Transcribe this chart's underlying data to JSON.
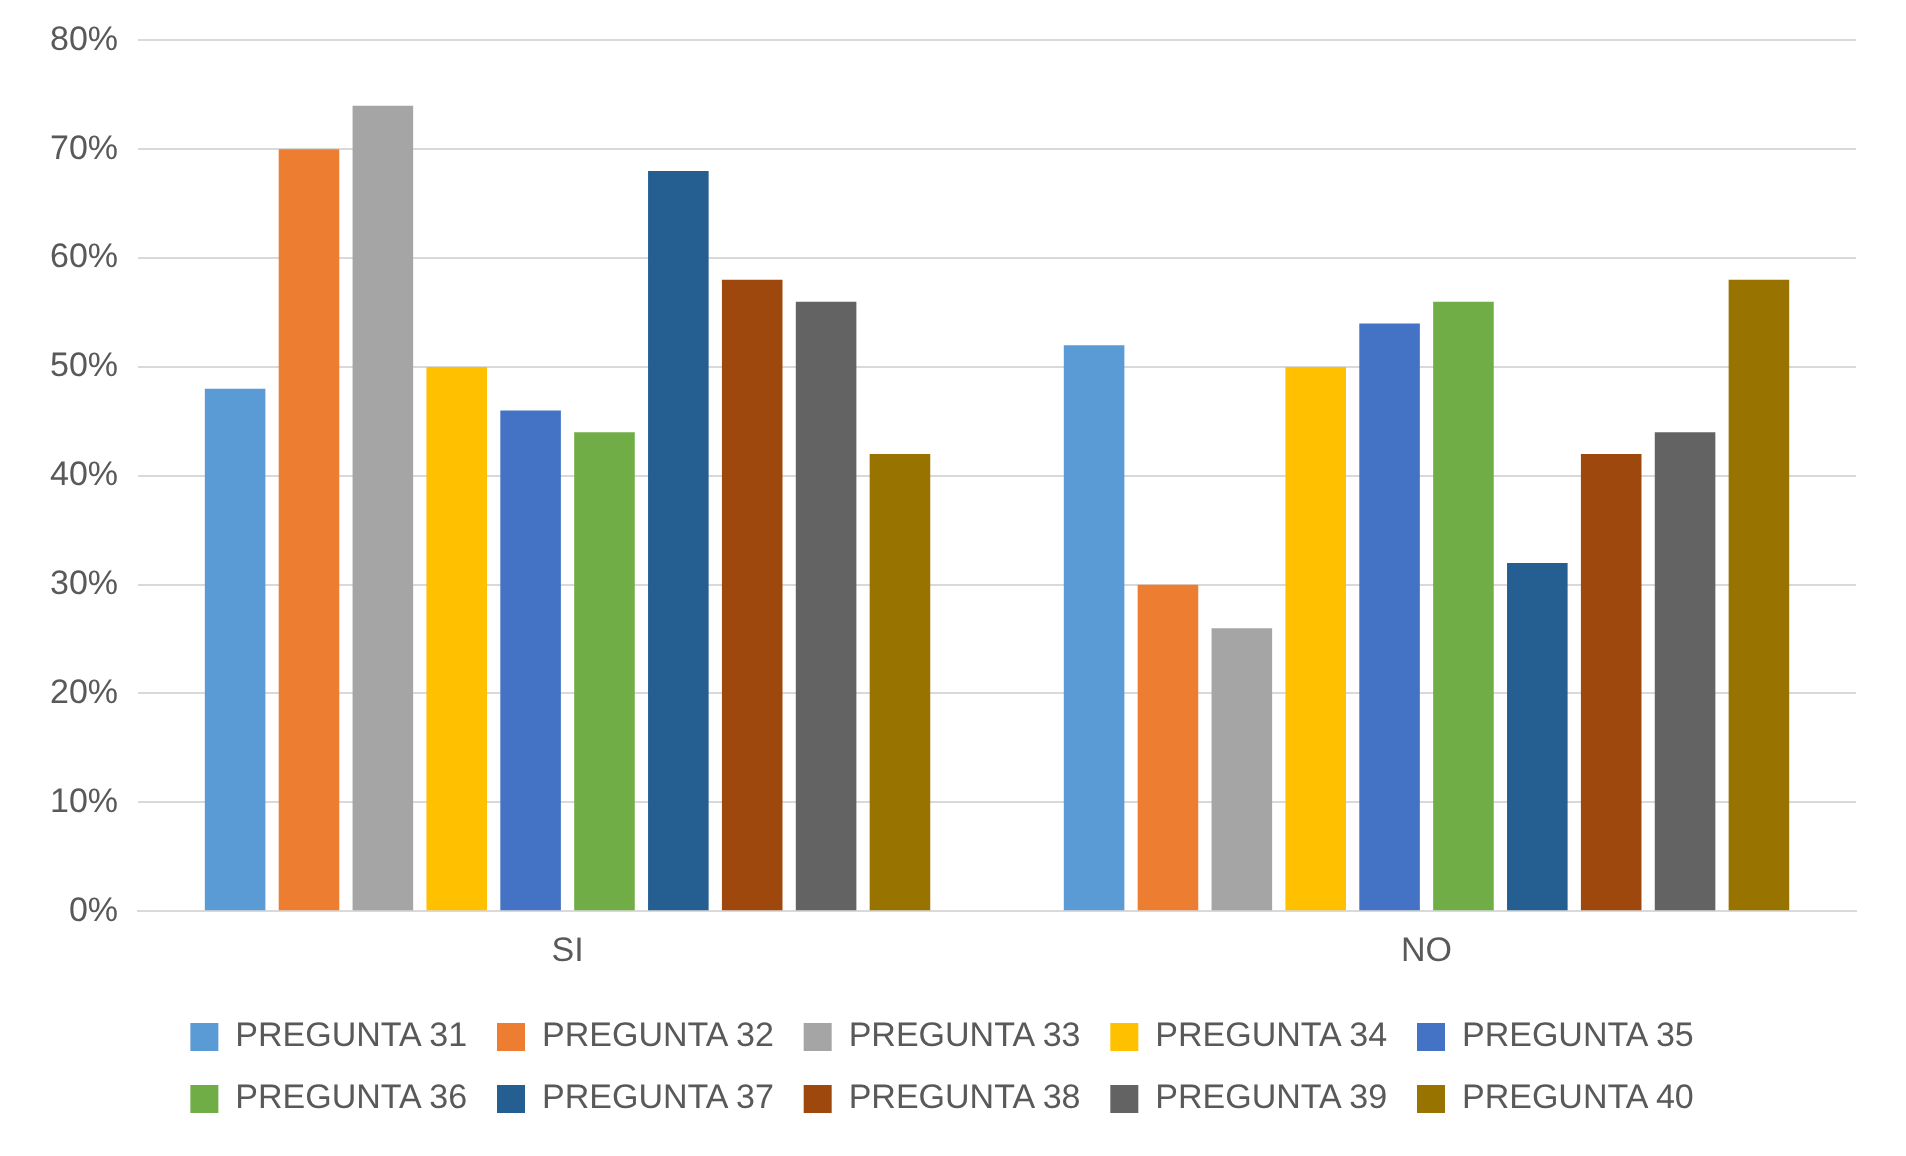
{
  "chart_data": {
    "type": "bar",
    "categories": [
      "SI",
      "NO"
    ],
    "series": [
      {
        "name": "PREGUNTA 31",
        "color": "#5b9bd5",
        "values": [
          48,
          52
        ]
      },
      {
        "name": "PREGUNTA 32",
        "color": "#ed7d31",
        "values": [
          70,
          30
        ]
      },
      {
        "name": "PREGUNTA 33",
        "color": "#a5a5a5",
        "values": [
          74,
          26
        ]
      },
      {
        "name": "PREGUNTA 34",
        "color": "#ffc000",
        "values": [
          50,
          50
        ]
      },
      {
        "name": "PREGUNTA 35",
        "color": "#4472c4",
        "values": [
          46,
          54
        ]
      },
      {
        "name": "PREGUNTA 36",
        "color": "#70ad47",
        "values": [
          44,
          56
        ]
      },
      {
        "name": "PREGUNTA 37",
        "color": "#255e91",
        "values": [
          68,
          32
        ]
      },
      {
        "name": "PREGUNTA 38",
        "color": "#9e480e",
        "values": [
          58,
          42
        ]
      },
      {
        "name": "PREGUNTA 39",
        "color": "#636363",
        "values": [
          56,
          44
        ]
      },
      {
        "name": "PREGUNTA 40",
        "color": "#997300",
        "values": [
          42,
          58
        ]
      }
    ],
    "ylim": [
      0,
      80
    ],
    "yticks": [
      {
        "value": 0,
        "label": "0%"
      },
      {
        "value": 10,
        "label": "10%"
      },
      {
        "value": 20,
        "label": "20%"
      },
      {
        "value": 30,
        "label": "30%"
      },
      {
        "value": 40,
        "label": "40%"
      },
      {
        "value": 50,
        "label": "50%"
      },
      {
        "value": 60,
        "label": "60%"
      },
      {
        "value": 70,
        "label": "70%"
      },
      {
        "value": 80,
        "label": "80%"
      }
    ],
    "grid": "y",
    "legend": "bottom"
  }
}
